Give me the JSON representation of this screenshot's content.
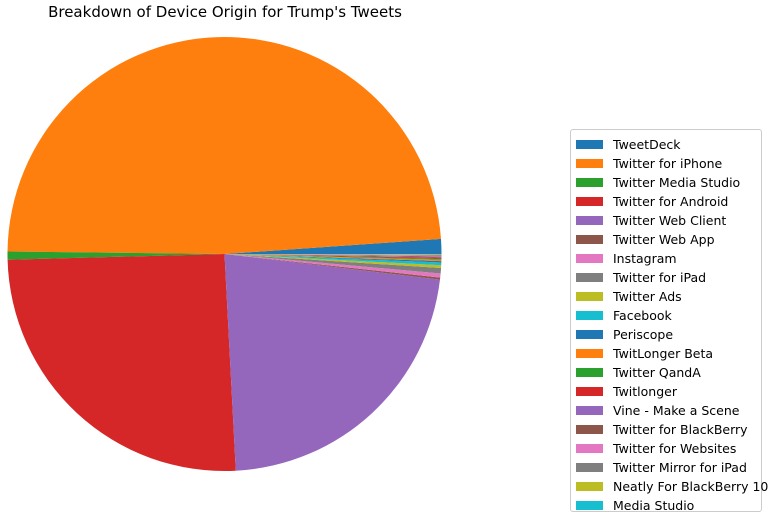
{
  "chart_data": {
    "type": "pie",
    "title": "Breakdown of Device Origin for Trump's Tweets",
    "legend_placement": "right",
    "start_angle_deg": 0,
    "direction": "counterclockwise",
    "categories": [
      "TweetDeck",
      "Twitter for iPhone",
      "Twitter Media Studio",
      "Twitter for Android",
      "Twitter Web Client",
      "Twitter Web App",
      "Instagram",
      "Twitter for iPad",
      "Twitter Ads",
      "Facebook",
      "Periscope",
      "TwitLonger Beta",
      "Twitter QandA",
      "Twitlonger",
      "Vine - Make a Scene",
      "Twitter for BlackBerry",
      "Twitter for Websites",
      "Twitter Mirror for iPad",
      "Neatly For BlackBerry 10",
      "Media Studio"
    ],
    "values": [
      1.1,
      48.3,
      0.6,
      25.2,
      22.1,
      0.15,
      0.3,
      0.4,
      0.2,
      0.2,
      0.1,
      0.1,
      0.08,
      0.08,
      0.05,
      0.05,
      0.05,
      0.04,
      0.04,
      0.03
    ],
    "colors": [
      "#1f77b4",
      "#ff7f0e",
      "#2ca02c",
      "#d62728",
      "#9467bd",
      "#8c564b",
      "#e377c2",
      "#7f7f7f",
      "#bcbd22",
      "#17becf",
      "#1f77b4",
      "#ff7f0e",
      "#2ca02c",
      "#d62728",
      "#9467bd",
      "#8c564b",
      "#e377c2",
      "#7f7f7f",
      "#bcbd22",
      "#17becf"
    ]
  }
}
